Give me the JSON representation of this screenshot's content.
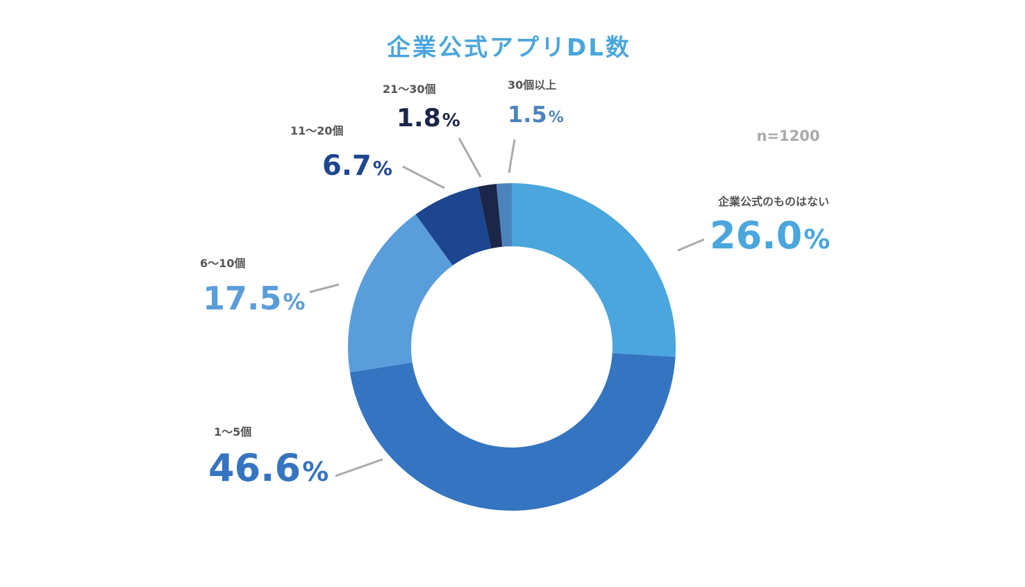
{
  "chart_data": {
    "type": "pie",
    "title": "企業公式アプリDL数",
    "sample_size": "n=1200",
    "percent_sign": "%",
    "slices": [
      {
        "label": "企業公式のものはない",
        "value": 26.0,
        "value_text": "26.0",
        "color": "#4aa6dc"
      },
      {
        "label": "1〜5個",
        "value": 46.6,
        "value_text": "46.6",
        "color": "#3574c0"
      },
      {
        "label": "6〜10個",
        "value": 17.5,
        "value_text": "17.5",
        "color": "#5a9ddb"
      },
      {
        "label": "11〜20個",
        "value": 6.7,
        "value_text": "6.7",
        "color": "#1e4590"
      },
      {
        "label": "21〜30個",
        "value": 1.8,
        "value_text": "1.8",
        "color": "#1b2648"
      },
      {
        "label": "30個以上",
        "value": 1.5,
        "value_text": "1.5",
        "color": "#4b84bd"
      }
    ],
    "colors": {
      "title": "#4aa6dc",
      "leader_line": "#aaaaaa"
    }
  }
}
